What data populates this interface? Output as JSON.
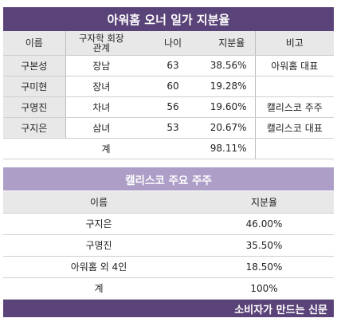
{
  "table1": {
    "title": "아워홈 오너 일가 지분율",
    "headers": [
      "이름",
      "구자학 회장",
      "관계",
      "나이",
      "지분율",
      "비고"
    ],
    "rows": [
      {
        "name": "구본성",
        "relation": "장남",
        "age": "63",
        "share": "38.56%",
        "note": "아워홈 대표"
      },
      {
        "name": "구미현",
        "relation": "장녀",
        "age": "60",
        "share": "19.28%",
        "note": ""
      },
      {
        "name": "구명진",
        "relation": "차녀",
        "age": "56",
        "share": "19.60%",
        "note": "캘리스코 주주"
      },
      {
        "name": "구지은",
        "relation": "삼녀",
        "age": "53",
        "share": "20.67%",
        "note": "캘리스코 대표"
      }
    ],
    "total": {
      "label": "계",
      "share": "98.11%"
    }
  },
  "table2": {
    "title": "캘리스코 주요 주주",
    "headers": [
      "이름",
      "지분율"
    ],
    "rows": [
      {
        "name": "구지은",
        "share": "46.00%"
      },
      {
        "name": "구명진",
        "share": "35.50%"
      },
      {
        "name": "아워홈 외 4인",
        "share": "18.50%"
      },
      {
        "name": "계",
        "share": "100%"
      }
    ]
  },
  "footer": {
    "label": "소비자가 만드는 신문"
  }
}
